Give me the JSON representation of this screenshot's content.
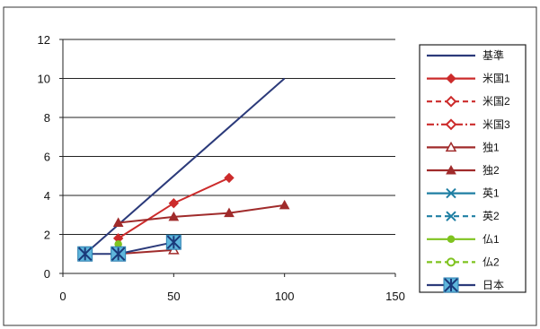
{
  "chart_data": {
    "type": "line",
    "title": "",
    "xlabel": "",
    "ylabel": "",
    "xlim": [
      0,
      150
    ],
    "ylim": [
      0,
      12
    ],
    "xticks": [
      0,
      50,
      100,
      150
    ],
    "yticks": [
      0,
      2,
      4,
      6,
      8,
      10,
      12
    ],
    "grid": "horizontal",
    "legend": "right",
    "series": [
      {
        "name": "基準",
        "color": "#2b3a7a",
        "dash": "solid",
        "marker": "none",
        "x": [
          10,
          100
        ],
        "y": [
          1,
          10
        ]
      },
      {
        "name": "米国1",
        "color": "#cc2b2b",
        "dash": "solid",
        "marker": "diamond",
        "x": [
          25,
          50,
          75
        ],
        "y": [
          1.8,
          3.6,
          4.9
        ]
      },
      {
        "name": "米国2",
        "color": "#cc2b2b",
        "dash": "dashed",
        "marker": "diamond-open",
        "x": [],
        "y": []
      },
      {
        "name": "米国3",
        "color": "#cc2b2b",
        "dash": "dashdot",
        "marker": "diamond-open",
        "x": [],
        "y": []
      },
      {
        "name": "独1",
        "color": "#a02b2b",
        "dash": "solid",
        "marker": "triangle-open",
        "x": [
          25,
          50
        ],
        "y": [
          1.0,
          1.2
        ]
      },
      {
        "name": "独2",
        "color": "#a02b2b",
        "dash": "solid",
        "marker": "triangle",
        "x": [
          25,
          50,
          75,
          100
        ],
        "y": [
          2.6,
          2.9,
          3.1,
          3.5
        ]
      },
      {
        "name": "英1",
        "color": "#1f7fa3",
        "dash": "solid",
        "marker": "x",
        "x": [],
        "y": []
      },
      {
        "name": "英2",
        "color": "#1f7fa3",
        "dash": "dashed",
        "marker": "x",
        "x": [],
        "y": []
      },
      {
        "name": "仏1",
        "color": "#7fc31f",
        "dash": "solid",
        "marker": "circle",
        "x": [
          25
        ],
        "y": [
          1.5
        ]
      },
      {
        "name": "仏2",
        "color": "#7fc31f",
        "dash": "dashed",
        "marker": "circle-open",
        "x": [],
        "y": []
      },
      {
        "name": "日本",
        "color": "#2b3a7a",
        "dash": "solid",
        "marker": "asterisk-box",
        "x": [
          10,
          25,
          50
        ],
        "y": [
          1.0,
          1.0,
          1.6
        ]
      }
    ]
  }
}
